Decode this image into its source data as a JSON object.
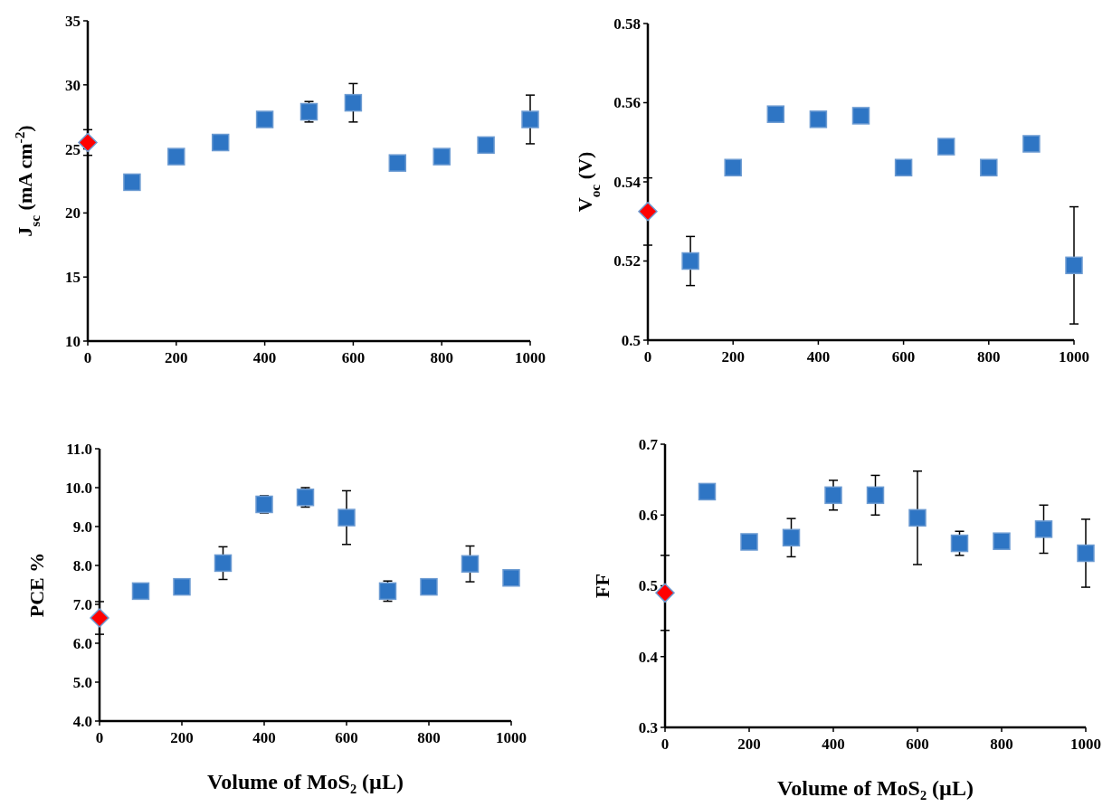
{
  "chart_data": [
    {
      "type": "scatter",
      "ylabel": "J$_{sc}$ (mA cm$^{-2}$)",
      "xlim": [
        0,
        1000
      ],
      "xticks": [
        0,
        200,
        400,
        600,
        800,
        1000
      ],
      "ylim": [
        10,
        35
      ],
      "yticks": [
        10,
        15,
        20,
        25,
        30,
        35
      ],
      "grid": false,
      "series": [
        {
          "color": "#ff0000",
          "marker": "diamond",
          "x": [
            0
          ],
          "values": [
            25.5
          ],
          "errors": [
            1.0
          ]
        },
        {
          "color": "#2e75c4",
          "marker": "square",
          "x": [
            100,
            200,
            300,
            400,
            500,
            600,
            700,
            800,
            900,
            1000
          ],
          "values": [
            22.4,
            24.4,
            25.5,
            27.3,
            27.9,
            28.6,
            23.9,
            24.4,
            25.3,
            27.3
          ],
          "errors": [
            null,
            null,
            null,
            null,
            0.8,
            1.5,
            null,
            null,
            null,
            1.9
          ]
        }
      ]
    },
    {
      "type": "scatter",
      "ylabel": "V$_{oc}$ (V)",
      "xlim": [
        0,
        1000
      ],
      "xticks": [
        0,
        200,
        400,
        600,
        800,
        1000
      ],
      "ylim": [
        0.5,
        0.58
      ],
      "yticks": [
        0.5,
        0.52,
        0.54,
        0.56,
        0.58
      ],
      "grid": false,
      "series": [
        {
          "color": "#ff0000",
          "marker": "diamond",
          "x": [
            0
          ],
          "values": [
            0.5325
          ],
          "errors": [
            0.0085
          ]
        },
        {
          "color": "#2e75c4",
          "marker": "square",
          "x": [
            100,
            200,
            300,
            400,
            500,
            600,
            700,
            800,
            900,
            1000
          ],
          "values": [
            0.52,
            0.5436,
            0.5571,
            0.5558,
            0.5567,
            0.5436,
            0.5489,
            0.5436,
            0.5496,
            0.5189
          ],
          "errors": [
            0.0062,
            null,
            null,
            null,
            null,
            null,
            null,
            null,
            null,
            0.0148
          ]
        }
      ]
    },
    {
      "type": "scatter",
      "ylabel": "PCE %",
      "xlabel": "Volume of MoS₂  (µL)",
      "xlim": [
        0,
        1000
      ],
      "xticks": [
        0,
        200,
        400,
        600,
        800,
        1000
      ],
      "ylim": [
        4,
        11
      ],
      "yticks": [
        {
          "value": 4,
          "label": "4.0"
        },
        {
          "value": 5,
          "label": "5.0"
        },
        {
          "value": 6,
          "label": "6.0"
        },
        {
          "value": 7,
          "label": "7.0"
        },
        {
          "value": 8,
          "label": "8.0"
        },
        {
          "value": 9,
          "label": "9.0"
        },
        {
          "value": 10,
          "label": "10.0"
        },
        {
          "value": 11,
          "label": "11.0"
        }
      ],
      "grid": false,
      "series": [
        {
          "color": "#ff0000",
          "marker": "diamond",
          "x": [
            0
          ],
          "values": [
            6.65
          ],
          "errors": [
            0.42
          ]
        },
        {
          "color": "#2e75c4",
          "marker": "square",
          "x": [
            100,
            200,
            300,
            400,
            500,
            600,
            700,
            800,
            900,
            1000
          ],
          "values": [
            7.34,
            7.45,
            8.06,
            9.57,
            9.75,
            9.23,
            7.34,
            7.45,
            8.04,
            7.68
          ],
          "errors": [
            null,
            null,
            0.42,
            0.22,
            0.25,
            0.69,
            0.26,
            null,
            0.46,
            null
          ]
        }
      ]
    },
    {
      "type": "scatter",
      "ylabel": "FF",
      "xlabel": "Volume of MoS₂ (µL)",
      "xlim": [
        0,
        1000
      ],
      "xticks": [
        0,
        200,
        400,
        600,
        800,
        1000
      ],
      "ylim": [
        0.3,
        0.7
      ],
      "yticks": [
        0.3,
        0.4,
        0.5,
        0.6,
        0.7
      ],
      "grid": false,
      "series": [
        {
          "color": "#ff0000",
          "marker": "diamond",
          "x": [
            0
          ],
          "values": [
            0.49
          ],
          "errors": [
            0.053
          ]
        },
        {
          "color": "#2e75c4",
          "marker": "square",
          "x": [
            100,
            200,
            300,
            400,
            500,
            600,
            700,
            800,
            900,
            1000
          ],
          "values": [
            0.633,
            0.562,
            0.568,
            0.628,
            0.628,
            0.596,
            0.56,
            0.563,
            0.58,
            0.546
          ],
          "errors": [
            null,
            null,
            0.027,
            0.021,
            0.028,
            0.066,
            0.017,
            null,
            0.034,
            0.048
          ]
        }
      ]
    }
  ]
}
